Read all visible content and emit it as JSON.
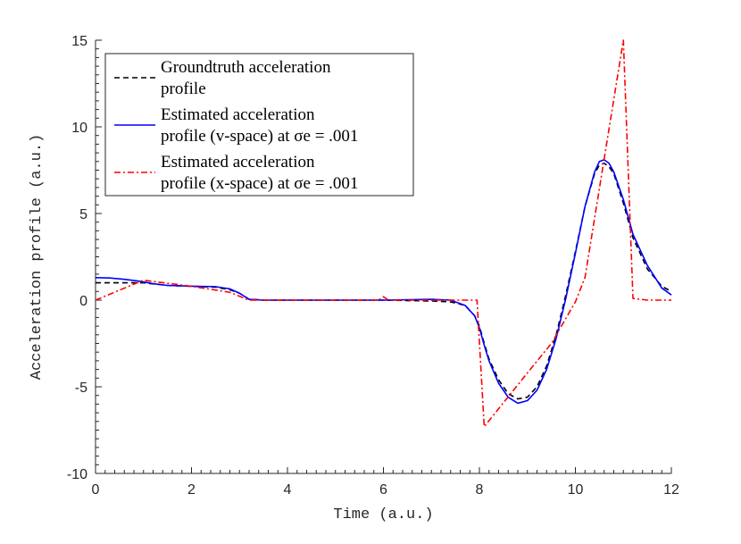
{
  "chart_data": {
    "type": "line",
    "xlabel": "Time (a.u.)",
    "ylabel": "Acceleration profile (a.u.)",
    "xlim": [
      0,
      12
    ],
    "ylim": [
      -10,
      15
    ],
    "xticks": [
      0,
      2,
      4,
      6,
      8,
      10,
      12
    ],
    "yticks": [
      -10,
      -5,
      0,
      5,
      10,
      15
    ],
    "xtick_labels": [
      "0",
      "2",
      "4",
      "6",
      "8",
      "10",
      "12"
    ],
    "ytick_labels": [
      "-10",
      "-5",
      "0",
      "5",
      "10",
      "15"
    ],
    "grid": false,
    "legend_position": "top-left",
    "series": [
      {
        "name_lines": [
          "Groundtruth acceleration",
          "profile"
        ],
        "color": "#000000",
        "style": "dashed",
        "x": [
          0,
          0.5,
          1.0,
          1.5,
          2.0,
          2.5,
          2.8,
          3.0,
          3.2,
          3.5,
          4,
          5,
          6,
          7,
          7.4,
          7.7,
          7.9,
          8.0,
          8.1,
          8.2,
          8.4,
          8.6,
          8.8,
          9.0,
          9.2,
          9.4,
          9.6,
          9.8,
          10.0,
          10.2,
          10.4,
          10.5,
          10.6,
          10.7,
          10.8,
          11.0,
          11.2,
          11.5,
          11.8,
          12
        ],
        "y": [
          1.0,
          1.0,
          1.0,
          0.85,
          0.8,
          0.75,
          0.6,
          0.4,
          0.05,
          0.0,
          0.0,
          0.0,
          0.0,
          -0.05,
          -0.1,
          -0.3,
          -0.9,
          -1.5,
          -2.5,
          -3.4,
          -4.6,
          -5.4,
          -5.7,
          -5.6,
          -5.0,
          -3.8,
          -2.0,
          0.3,
          2.8,
          5.4,
          7.3,
          7.8,
          7.9,
          7.7,
          7.3,
          5.6,
          3.6,
          1.8,
          0.8,
          0.5
        ]
      },
      {
        "name_lines": [
          "Estimated acceleration",
          "profile (v-space) at σe = .001"
        ],
        "color": "#0000ff",
        "style": "solid",
        "x": [
          0,
          0.3,
          0.6,
          0.9,
          1.2,
          1.5,
          2.0,
          2.5,
          2.8,
          3.0,
          3.2,
          3.5,
          4,
          5,
          6,
          7,
          7.4,
          7.7,
          7.9,
          8.0,
          8.1,
          8.2,
          8.4,
          8.6,
          8.8,
          9.0,
          9.2,
          9.4,
          9.6,
          9.8,
          10.0,
          10.2,
          10.4,
          10.5,
          10.6,
          10.7,
          10.8,
          11.0,
          11.2,
          11.5,
          11.8,
          12
        ],
        "y": [
          1.3,
          1.28,
          1.2,
          1.1,
          0.95,
          0.85,
          0.8,
          0.78,
          0.65,
          0.4,
          0.05,
          0.0,
          0.0,
          0.0,
          0.0,
          0.05,
          0.0,
          -0.3,
          -0.9,
          -1.6,
          -2.6,
          -3.5,
          -4.8,
          -5.6,
          -5.95,
          -5.8,
          -5.2,
          -4.0,
          -2.2,
          0.1,
          2.7,
          5.4,
          7.4,
          8.0,
          8.1,
          7.9,
          7.4,
          5.8,
          3.8,
          2.0,
          0.7,
          0.3
        ]
      },
      {
        "name_lines": [
          "Estimated acceleration",
          "profile (x-space) at σe = .001"
        ],
        "color": "#ff0000",
        "style": "dashdot",
        "x": [
          0,
          1.0,
          2.0,
          2.8,
          3.2,
          4,
          5,
          5.9,
          6.0,
          6.1,
          7,
          7.95,
          8.1,
          9.0,
          9.5,
          10.0,
          10.2,
          11.0,
          11.2,
          11.5,
          12
        ],
        "y": [
          0.0,
          1.15,
          0.8,
          0.45,
          0.0,
          0.0,
          0.0,
          0.0,
          0.2,
          0.0,
          0.0,
          0.0,
          -7.3,
          -4.2,
          -2.5,
          -0.1,
          1.3,
          15.0,
          0.1,
          0.0,
          0.0
        ]
      }
    ]
  }
}
